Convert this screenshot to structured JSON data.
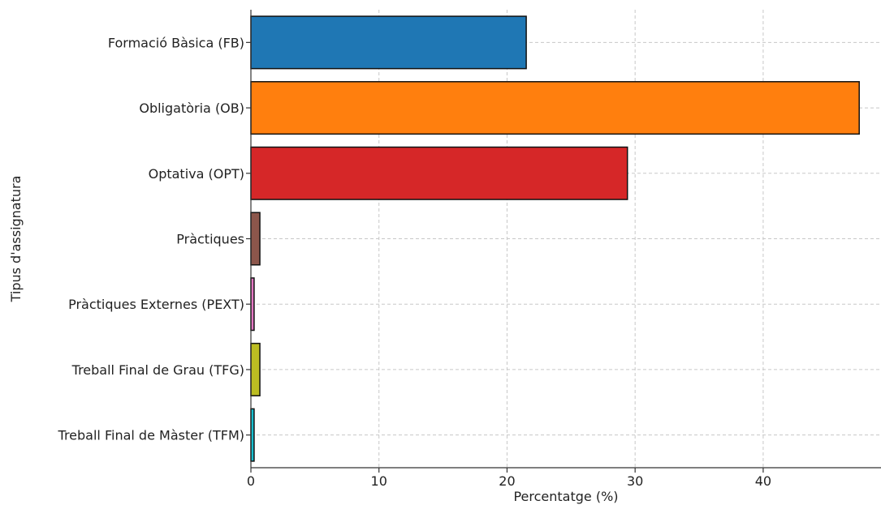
{
  "chart_data": {
    "type": "bar",
    "orientation": "horizontal",
    "title": "",
    "xlabel": "Percentatge (%)",
    "ylabel": "Tipus d'assignatura",
    "categories": [
      "Formació Bàsica (FB)",
      "Obligatòria (OB)",
      "Optativa (OPT)",
      "Pràctiques",
      "Pràctiques Externes (PEXT)",
      "Treball Final de Grau (TFG)",
      "Treball Final de Màster (TFM)"
    ],
    "values": [
      21.5,
      47.5,
      29.4,
      0.7,
      0.25,
      0.7,
      0.25
    ],
    "colors": [
      "#1f77b4",
      "#ff7f0e",
      "#d62728",
      "#8c564b",
      "#e377c2",
      "#bcbd22",
      "#17becf"
    ],
    "xlim": [
      0,
      49.2
    ],
    "xticks": [
      0,
      10,
      20,
      30,
      40
    ],
    "grid": true,
    "legend": "none"
  }
}
